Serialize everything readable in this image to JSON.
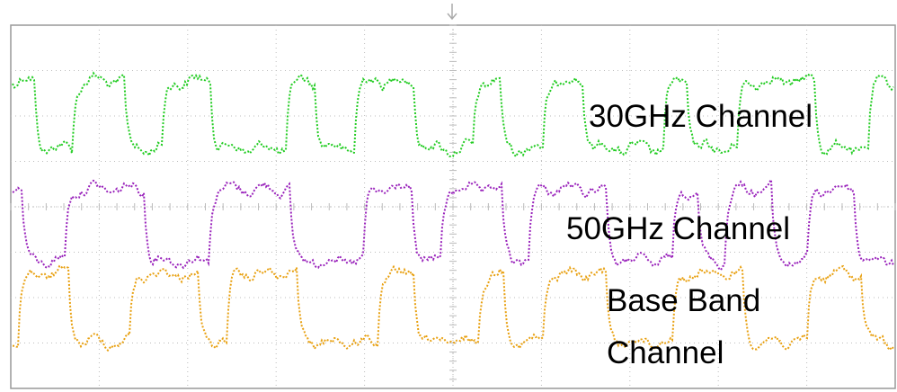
{
  "labels": [
    "30GHz Channel",
    "50GHz Channel",
    "Base Band",
    "Channel"
  ]
}
